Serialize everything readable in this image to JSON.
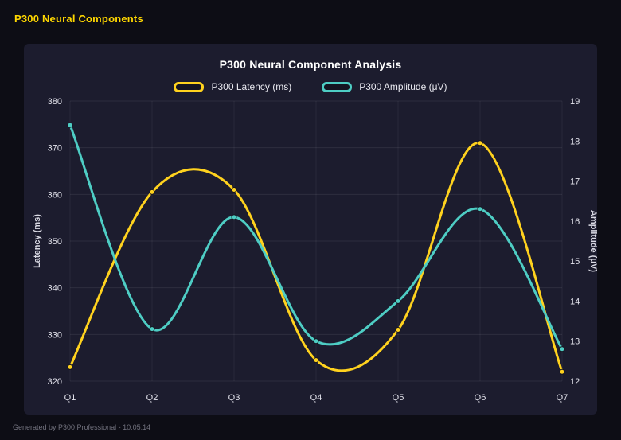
{
  "header": {
    "title": "P300 Neural Components"
  },
  "chart_data": {
    "type": "line",
    "title": "P300 Neural Component Analysis",
    "categories": [
      "Q1",
      "Q2",
      "Q3",
      "Q4",
      "Q5",
      "Q6",
      "Q7"
    ],
    "series": [
      {
        "name": "P300 Latency (ms)",
        "axis": "left",
        "color": "#ffd21e",
        "values": [
          323,
          360.5,
          361,
          324.5,
          331,
          371,
          322
        ]
      },
      {
        "name": "P300 Amplitude (μV)",
        "axis": "right",
        "color": "#4ecdc4",
        "values": [
          18.4,
          13.3,
          16.1,
          13.0,
          14.0,
          16.3,
          12.8
        ]
      }
    ],
    "left_axis": {
      "label": "Latency (ms)",
      "min": 320,
      "max": 380,
      "ticks": [
        320,
        330,
        340,
        350,
        360,
        370,
        380
      ]
    },
    "right_axis": {
      "label": "Amplitude (μV)",
      "min": 12,
      "max": 19,
      "ticks": [
        12,
        13,
        14,
        15,
        16,
        17,
        18,
        19
      ]
    },
    "grid": true,
    "legend_position": "top",
    "smooth": true
  },
  "footer": {
    "text": "Generated by P300 Professional - 10:05:14"
  },
  "colors": {
    "page_background": "#0d0d15",
    "card_background": "#1c1c2e",
    "title_accent": "#ffd700",
    "latency_line": "#ffd21e",
    "amplitude_line": "#4ecdc4"
  }
}
